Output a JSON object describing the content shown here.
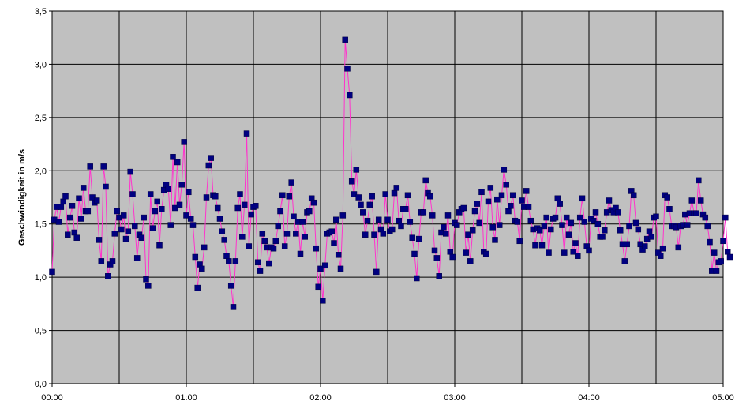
{
  "chart_data": {
    "type": "line",
    "title": "",
    "xlabel": "",
    "ylabel": "Geschwindigkeit in m/s",
    "xlim": [
      "00:00",
      "05:00"
    ],
    "ylim": [
      0,
      3.5
    ],
    "x_tick_labels": [
      "00:00",
      "01:00",
      "02:00",
      "03:00",
      "04:00",
      "05:00"
    ],
    "y_tick_labels": [
      "0,0",
      "0,5",
      "1,0",
      "1,5",
      "2,0",
      "2,5",
      "3,0",
      "3,5"
    ],
    "y_tick_values": [
      0,
      0.5,
      1,
      1.5,
      2,
      2.5,
      3,
      3.5
    ],
    "x_minor_gridlines_minutes": 30,
    "grid": true,
    "legend": "none",
    "sample_interval_minutes": 1,
    "series": [
      {
        "line_color": "#ff33cc",
        "marker_color": "#000080",
        "values": [
          1.05,
          1.54,
          1.66,
          1.52,
          1.66,
          1.71,
          1.76,
          1.4,
          1.56,
          1.67,
          1.42,
          1.37,
          1.74,
          1.55,
          1.84,
          1.62,
          1.62,
          2.04,
          1.75,
          1.7,
          1.72,
          1.35,
          1.15,
          2.04,
          1.85,
          1.01,
          1.12,
          1.15,
          1.41,
          1.62,
          1.56,
          1.45,
          1.58,
          1.36,
          1.43,
          1.99,
          1.78,
          1.48,
          1.18,
          1.4,
          1.37,
          1.56,
          0.98,
          0.92,
          1.78,
          1.46,
          1.62,
          1.71,
          1.3,
          1.64,
          1.82,
          1.87,
          1.83,
          1.49,
          2.13,
          1.65,
          2.08,
          1.68,
          1.87,
          2.27,
          1.58,
          1.8,
          1.55,
          1.49,
          1.19,
          0.9,
          1.12,
          1.08,
          1.28,
          1.75,
          2.05,
          2.12,
          1.77,
          1.76,
          1.65,
          1.55,
          1.43,
          1.35,
          1.2,
          1.15,
          0.92,
          0.72,
          1.15,
          1.65,
          1.78,
          1.38,
          1.68,
          2.35,
          1.29,
          1.59,
          1.66,
          1.67,
          1.14,
          1.06,
          1.41,
          1.34,
          1.28,
          1.13,
          1.28,
          1.27,
          1.34,
          1.48,
          1.62,
          1.77,
          1.29,
          1.41,
          1.76,
          1.89,
          1.57,
          1.41,
          1.52,
          1.22,
          1.52,
          1.38,
          1.61,
          1.62,
          1.74,
          1.7,
          1.27,
          0.91,
          1.08,
          0.78,
          1.11,
          1.41,
          1.42,
          1.43,
          1.32,
          1.54,
          1.21,
          1.08,
          1.58,
          3.23,
          2.96,
          2.71,
          1.9,
          1.78,
          2.01,
          1.75,
          1.68,
          1.61,
          1.4,
          1.53,
          1.68,
          1.76,
          1.4,
          1.05,
          1.54,
          1.45,
          1.41,
          1.78,
          1.54,
          1.43,
          1.45,
          1.79,
          1.84,
          1.53,
          1.48,
          1.64,
          1.64,
          1.77,
          1.52,
          1.37,
          1.22,
          0.99,
          1.36,
          1.61,
          1.61,
          1.91,
          1.79,
          1.76,
          1.58,
          1.25,
          1.18,
          1.01,
          1.42,
          1.47,
          1.41,
          1.58,
          1.24,
          1.19,
          1.51,
          1.49,
          1.61,
          1.64,
          1.65,
          1.23,
          1.4,
          1.15,
          1.44,
          1.62,
          1.69,
          1.51,
          1.8,
          1.24,
          1.22,
          1.71,
          1.84,
          1.47,
          1.35,
          1.73,
          1.49,
          1.77,
          2.01,
          1.87,
          1.62,
          1.67,
          1.77,
          1.53,
          1.52,
          1.34,
          1.72,
          1.66,
          1.81,
          1.66,
          1.53,
          1.45,
          1.3,
          1.46,
          1.44,
          1.3,
          1.48,
          1.56,
          1.23,
          1.45,
          1.55,
          1.56,
          1.74,
          1.69,
          1.49,
          1.23,
          1.56,
          1.4,
          1.51,
          1.24,
          1.32,
          1.2,
          1.56,
          1.74,
          1.52,
          1.29,
          1.25,
          1.55,
          1.53,
          1.61,
          1.5,
          1.38,
          1.38,
          1.44,
          1.61,
          1.72,
          1.63,
          1.61,
          1.65,
          1.61,
          1.44,
          1.31,
          1.15,
          1.31,
          1.48,
          1.81,
          1.77,
          1.51,
          1.45,
          1.31,
          1.26,
          1.29,
          1.36,
          1.43,
          1.38,
          1.56,
          1.57,
          1.23,
          1.2,
          1.27,
          1.77,
          1.75,
          1.64,
          1.48,
          1.48,
          1.47,
          1.28,
          1.48,
          1.49,
          1.59,
          1.49,
          1.6,
          1.72,
          1.6,
          1.6,
          1.91,
          1.72,
          1.59,
          1.56,
          1.48,
          1.33,
          1.06,
          1.23,
          1.06,
          1.14,
          1.15,
          1.34,
          1.56,
          1.24,
          1.19
        ]
      }
    ]
  }
}
